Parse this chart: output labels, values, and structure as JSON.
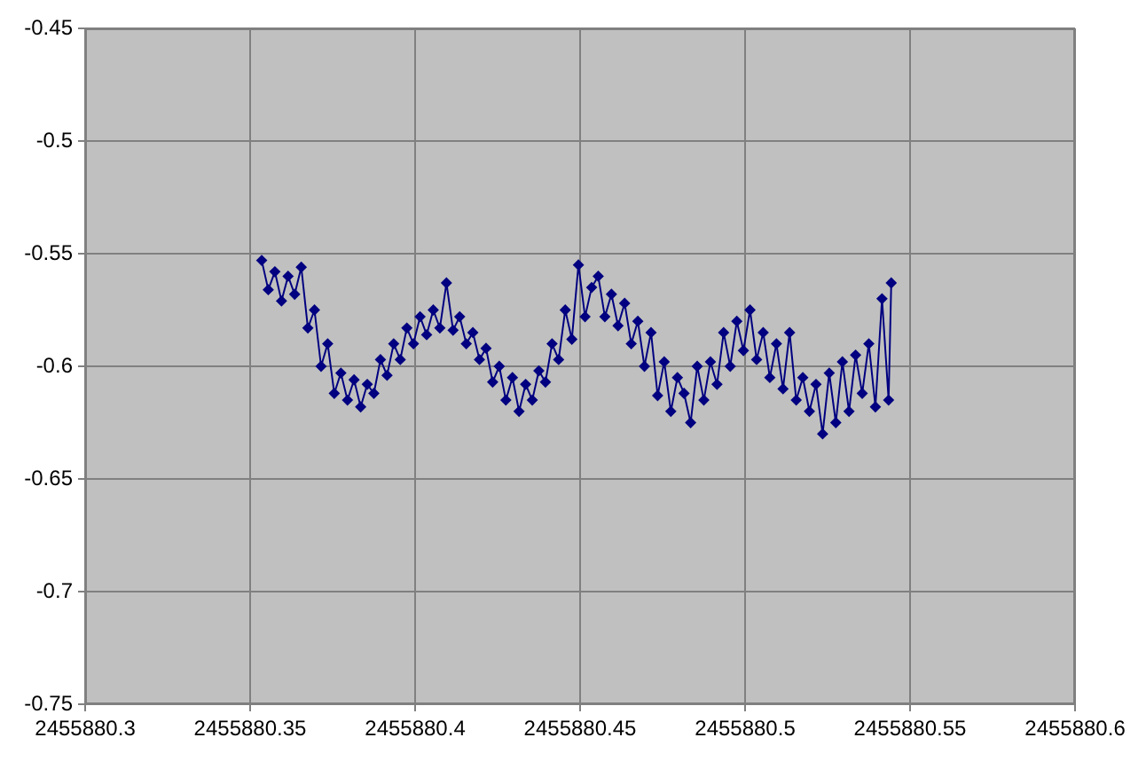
{
  "chart_data": {
    "type": "line",
    "marker": "diamond",
    "line_style": "solid",
    "grid": true,
    "legend": false,
    "xlim": [
      2455880.3,
      2455880.6
    ],
    "xticks": [
      2455880.3,
      2455880.35,
      2455880.4,
      2455880.45,
      2455880.5,
      2455880.55,
      2455880.6
    ],
    "ylim": [
      -0.75,
      -0.45
    ],
    "yticks": [
      -0.75,
      -0.7,
      -0.65,
      -0.6,
      -0.55,
      -0.5,
      -0.45
    ],
    "x": [
      2455880.3535,
      2455880.3555,
      2455880.3575,
      2455880.3595,
      2455880.3615,
      2455880.3635,
      2455880.3655,
      2455880.3675,
      2455880.3695,
      2455880.3715,
      2455880.3735,
      2455880.3755,
      2455880.3775,
      2455880.3795,
      2455880.3815,
      2455880.3835,
      2455880.3855,
      2455880.3875,
      2455880.3895,
      2455880.3915,
      2455880.3935,
      2455880.3955,
      2455880.3975,
      2455880.3995,
      2455880.4015,
      2455880.4035,
      2455880.4055,
      2455880.4075,
      2455880.4095,
      2455880.4115,
      2455880.4135,
      2455880.4155,
      2455880.4175,
      2455880.4195,
      2455880.4215,
      2455880.4235,
      2455880.4255,
      2455880.4275,
      2455880.4295,
      2455880.4315,
      2455880.4335,
      2455880.4355,
      2455880.4375,
      2455880.4395,
      2455880.4415,
      2455880.4435,
      2455880.4455,
      2455880.4475,
      2455880.4495,
      2455880.4515,
      2455880.4535,
      2455880.4555,
      2455880.4575,
      2455880.4595,
      2455880.4615,
      2455880.4635,
      2455880.4655,
      2455880.4675,
      2455880.4695,
      2455880.4715,
      2455880.4735,
      2455880.4755,
      2455880.4775,
      2455880.4795,
      2455880.4815,
      2455880.4835,
      2455880.4855,
      2455880.4875,
      2455880.4895,
      2455880.4915,
      2455880.4935,
      2455880.4955,
      2455880.4975,
      2455880.4995,
      2455880.5015,
      2455880.5035,
      2455880.5055,
      2455880.5075,
      2455880.5095,
      2455880.5115,
      2455880.5135,
      2455880.5155,
      2455880.5175,
      2455880.5195,
      2455880.5215,
      2455880.5235,
      2455880.5255,
      2455880.5275,
      2455880.5295,
      2455880.5315,
      2455880.5335,
      2455880.5355,
      2455880.5375,
      2455880.5395,
      2455880.5415,
      2455880.5435,
      2455880.5443
    ],
    "series": [
      {
        "color": "#000080",
        "values": [
          -0.553,
          -0.566,
          -0.558,
          -0.571,
          -0.56,
          -0.568,
          -0.556,
          -0.583,
          -0.575,
          -0.6,
          -0.59,
          -0.612,
          -0.603,
          -0.615,
          -0.606,
          -0.618,
          -0.608,
          -0.612,
          -0.597,
          -0.604,
          -0.59,
          -0.597,
          -0.583,
          -0.59,
          -0.578,
          -0.586,
          -0.575,
          -0.583,
          -0.563,
          -0.584,
          -0.578,
          -0.59,
          -0.585,
          -0.597,
          -0.592,
          -0.607,
          -0.6,
          -0.615,
          -0.605,
          -0.62,
          -0.608,
          -0.615,
          -0.602,
          -0.607,
          -0.59,
          -0.597,
          -0.575,
          -0.588,
          -0.555,
          -0.578,
          -0.565,
          -0.56,
          -0.578,
          -0.568,
          -0.582,
          -0.572,
          -0.59,
          -0.58,
          -0.6,
          -0.585,
          -0.613,
          -0.598,
          -0.62,
          -0.605,
          -0.612,
          -0.625,
          -0.6,
          -0.615,
          -0.598,
          -0.608,
          -0.585,
          -0.6,
          -0.58,
          -0.593,
          -0.575,
          -0.597,
          -0.585,
          -0.605,
          -0.59,
          -0.61,
          -0.585,
          -0.615,
          -0.605,
          -0.62,
          -0.608,
          -0.63,
          -0.603,
          -0.625,
          -0.598,
          -0.62,
          -0.595,
          -0.612,
          -0.59,
          -0.618,
          -0.57,
          -0.615,
          -0.563
        ]
      }
    ]
  }
}
